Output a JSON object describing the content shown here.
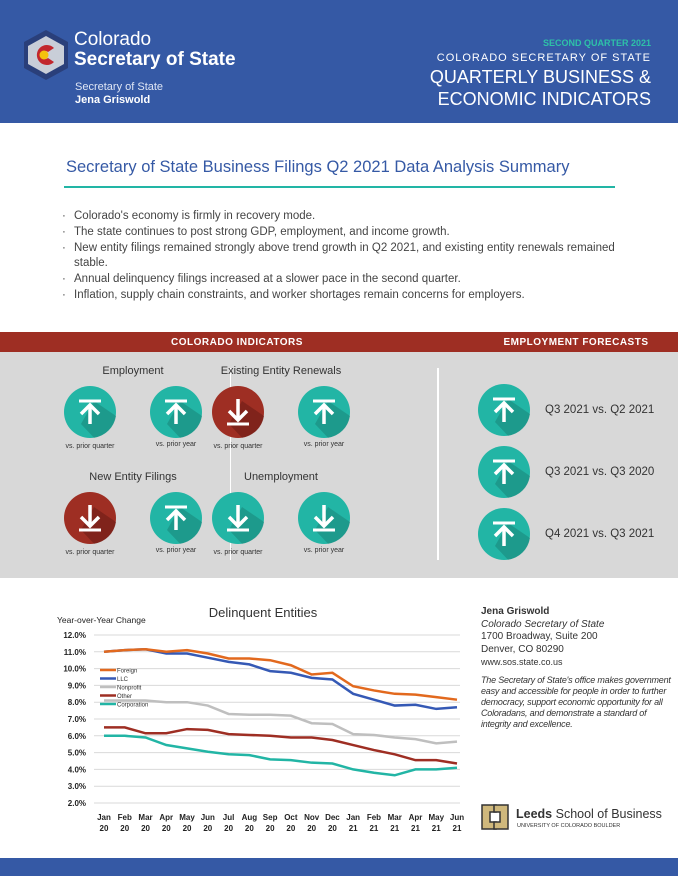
{
  "header": {
    "logo_line1": "Colorado",
    "logo_line2": "Secretary of State",
    "sos_label": "Secretary of State",
    "sos_name": "Jena Griswold",
    "quarter": "SECOND QUARTER 2021",
    "org": "COLORADO SECRETARY OF STATE",
    "title_line1": "QUARTERLY BUSINESS &",
    "title_line2": "ECONOMIC INDICATORS"
  },
  "summary": {
    "title": "Secretary of State Business Filings Q2 2021 Data Analysis Summary",
    "bullets": [
      "Colorado's economy is firmly in recovery mode.",
      "The state continues to post strong GDP, employment, and income growth.",
      "New entity filings remained strongly above trend growth in Q2 2021, and existing entity renewals remained stable.",
      "Annual delinquency filings increased at a slower pace in the second quarter.",
      "Inflation, supply chain constraints, and worker shortages remain concerns for employers."
    ]
  },
  "colors": {
    "up": "#22b5a5",
    "down": "#9e2e23",
    "brand": "#3559a5"
  },
  "indicators": {
    "heading": "COLORADO INDICATORS",
    "groups": [
      {
        "title": "Employment",
        "items": [
          {
            "caption": "vs. prior quarter",
            "direction": "up",
            "color": "up"
          },
          {
            "caption": "vs. prior year",
            "direction": "up",
            "color": "up"
          }
        ]
      },
      {
        "title": "Existing Entity Renewals",
        "items": [
          {
            "caption": "vs. prior quarter",
            "direction": "down",
            "color": "down"
          },
          {
            "caption": "vs. prior year",
            "direction": "up",
            "color": "up"
          }
        ]
      },
      {
        "title": "New Entity Filings",
        "items": [
          {
            "caption": "vs. prior quarter",
            "direction": "down",
            "color": "down"
          },
          {
            "caption": "vs. prior year",
            "direction": "up",
            "color": "up"
          }
        ]
      },
      {
        "title": "Unemployment",
        "items": [
          {
            "caption": "vs. prior quarter",
            "direction": "down",
            "color": "up"
          },
          {
            "caption": "vs. prior year",
            "direction": "down",
            "color": "up"
          }
        ]
      }
    ]
  },
  "forecasts": {
    "heading": "EMPLOYMENT FORECASTS",
    "items": [
      {
        "label": "Q3 2021 vs. Q2 2021",
        "direction": "up"
      },
      {
        "label": "Q3 2021 vs. Q3 2020",
        "direction": "up"
      },
      {
        "label": "Q4 2021 vs. Q3 2021",
        "direction": "up"
      }
    ]
  },
  "chart_data": {
    "type": "line",
    "title": "Delinquent Entities",
    "ylabel": "Year-over-Year Change",
    "xlabel": "",
    "ylim": [
      2,
      12
    ],
    "y_ticks": [
      "12.0%",
      "11.0%",
      "10.0%",
      "9.0%",
      "8.0%",
      "7.0%",
      "6.0%",
      "5.0%",
      "4.0%",
      "3.0%",
      "2.0%"
    ],
    "grid": "horizontal",
    "legend": "left, inside plot",
    "categories": [
      [
        "Jan",
        "20"
      ],
      [
        "Feb",
        "20"
      ],
      [
        "Mar",
        "20"
      ],
      [
        "Apr",
        "20"
      ],
      [
        "May",
        "20"
      ],
      [
        "Jun",
        "20"
      ],
      [
        "Jul",
        "20"
      ],
      [
        "Aug",
        "20"
      ],
      [
        "Sep",
        "20"
      ],
      [
        "Oct",
        "20"
      ],
      [
        "Nov",
        "20"
      ],
      [
        "Dec",
        "20"
      ],
      [
        "Jan",
        "21"
      ],
      [
        "Feb",
        "21"
      ],
      [
        "Mar",
        "21"
      ],
      [
        "Apr",
        "21"
      ],
      [
        "May",
        "21"
      ],
      [
        "Jun",
        "21"
      ]
    ],
    "series": [
      {
        "name": "Foreign",
        "color": "#e2691e",
        "values": [
          11.0,
          11.1,
          11.15,
          11.0,
          11.1,
          10.9,
          10.6,
          10.6,
          10.5,
          10.2,
          9.65,
          9.75,
          8.95,
          8.7,
          8.5,
          8.45,
          8.3,
          8.15
        ]
      },
      {
        "name": "LLC",
        "color": "#3559b5",
        "values": [
          11.0,
          11.1,
          11.15,
          10.9,
          10.9,
          10.65,
          10.4,
          10.25,
          9.85,
          9.75,
          9.45,
          9.35,
          8.5,
          8.15,
          7.8,
          7.85,
          7.6,
          7.7
        ]
      },
      {
        "name": "Nonprofit",
        "color": "#bfbfbf",
        "values": [
          8.1,
          8.1,
          8.1,
          8.0,
          8.0,
          7.8,
          7.3,
          7.25,
          7.25,
          7.2,
          6.75,
          6.7,
          6.1,
          6.05,
          5.9,
          5.8,
          5.55,
          5.65
        ]
      },
      {
        "name": "Other",
        "color": "#9e2e23",
        "values": [
          6.5,
          6.5,
          6.15,
          6.15,
          6.4,
          6.35,
          6.1,
          6.05,
          6.0,
          5.9,
          5.9,
          5.75,
          5.45,
          5.15,
          4.9,
          4.55,
          4.55,
          4.35
        ]
      },
      {
        "name": "Corporation",
        "color": "#22b5a5",
        "values": [
          6.0,
          6.0,
          5.9,
          5.45,
          5.25,
          5.05,
          4.9,
          4.85,
          4.6,
          4.55,
          4.4,
          4.35,
          4.0,
          3.8,
          3.65,
          4.0,
          4.0,
          4.1
        ]
      }
    ]
  },
  "contact": {
    "name": "Jena Griswold",
    "title": "Colorado Secretary of State",
    "address1": "1700 Broadway, Suite 200",
    "address2": "Denver, CO 80290",
    "website": "www.sos.state.co.us",
    "mission": "The Secretary of State's office makes government easy and accessible for people in order to further democracy, support economic opportunity for all Coloradans, and demonstrate a standard of integrity and excellence."
  },
  "leeds": {
    "name_bold": "Leeds",
    "name_rest": " School of Business",
    "sub": "UNIVERSITY OF COLORADO BOULDER"
  }
}
